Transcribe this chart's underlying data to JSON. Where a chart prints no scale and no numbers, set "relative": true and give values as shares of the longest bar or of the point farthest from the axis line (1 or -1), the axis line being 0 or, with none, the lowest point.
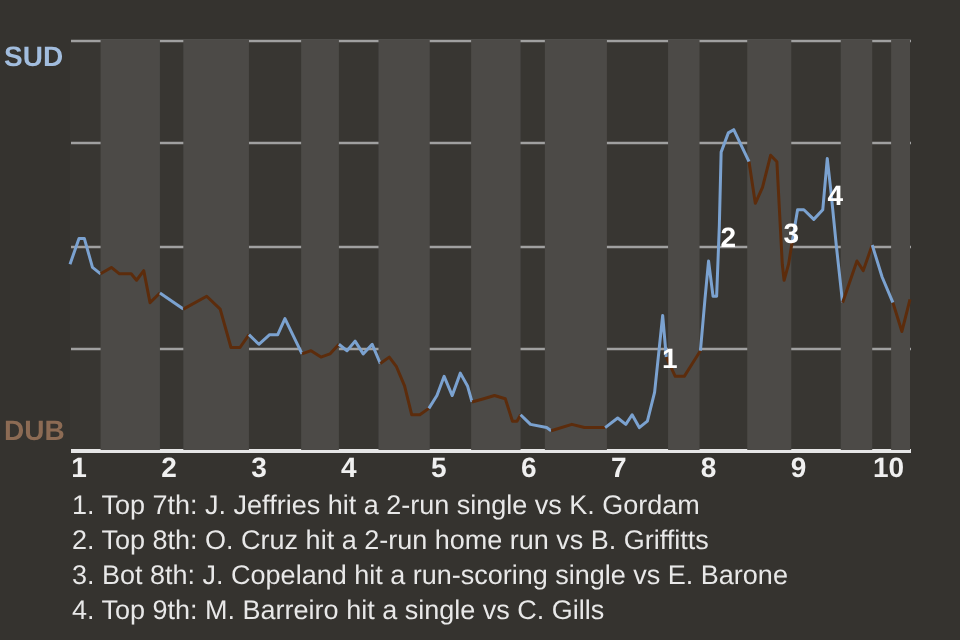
{
  "chart_data": {
    "type": "line",
    "relative": true,
    "xlim": [
      0.91,
      10.25
    ],
    "xticks": [
      1,
      2,
      3,
      4,
      5,
      6,
      7,
      8,
      9,
      10
    ],
    "grid": "y",
    "series": [
      {
        "color": "#7ba2d0",
        "x": [
          0.91,
          1.01,
          1.07,
          1.16,
          1.25
        ],
        "values": [
          0.58,
          0.66,
          0.66,
          0.57,
          0.55
        ]
      },
      {
        "color": "#5c2c0c",
        "x": [
          1.25,
          1.37,
          1.46,
          1.59,
          1.65,
          1.73,
          1.8,
          1.91
        ],
        "values": [
          0.55,
          0.57,
          0.55,
          0.55,
          0.53,
          0.56,
          0.46,
          0.49
        ]
      },
      {
        "color": "#7ba2d0",
        "x": [
          1.91,
          2.17
        ],
        "values": [
          0.49,
          0.44
        ]
      },
      {
        "color": "#5c2c0c",
        "x": [
          2.17,
          2.43,
          2.58,
          2.7,
          2.8,
          2.9
        ],
        "values": [
          0.44,
          0.48,
          0.44,
          0.32,
          0.32,
          0.36
        ]
      },
      {
        "color": "#7ba2d0",
        "x": [
          2.9,
          3.01,
          3.13,
          3.22,
          3.3,
          3.49
        ],
        "values": [
          0.36,
          0.33,
          0.36,
          0.36,
          0.41,
          0.3
        ]
      },
      {
        "color": "#5c2c0c",
        "x": [
          3.49,
          3.59,
          3.7,
          3.8,
          3.9
        ],
        "values": [
          0.3,
          0.31,
          0.29,
          0.3,
          0.33
        ]
      },
      {
        "color": "#7ba2d0",
        "x": [
          3.9,
          3.99,
          4.08,
          4.17,
          4.27,
          4.36
        ],
        "values": [
          0.33,
          0.31,
          0.34,
          0.3,
          0.33,
          0.27
        ]
      },
      {
        "color": "#5c2c0c",
        "x": [
          4.36,
          4.46,
          4.54,
          4.63,
          4.71,
          4.8,
          4.9
        ],
        "values": [
          0.27,
          0.29,
          0.26,
          0.2,
          0.11,
          0.11,
          0.13
        ]
      },
      {
        "color": "#7ba2d0",
        "x": [
          4.9,
          4.99,
          5.07,
          5.16,
          5.25,
          5.33,
          5.38
        ],
        "values": [
          0.13,
          0.17,
          0.23,
          0.17,
          0.24,
          0.2,
          0.15
        ]
      },
      {
        "color": "#5c2c0c",
        "x": [
          5.38,
          5.51,
          5.63,
          5.75,
          5.83,
          5.88,
          5.92
        ],
        "values": [
          0.15,
          0.16,
          0.17,
          0.16,
          0.09,
          0.09,
          0.11
        ]
      },
      {
        "color": "#7ba2d0",
        "x": [
          5.92,
          6.03,
          6.21,
          6.26
        ],
        "values": [
          0.11,
          0.08,
          0.07,
          0.06
        ]
      },
      {
        "color": "#5c2c0c",
        "x": [
          6.26,
          6.49,
          6.63,
          6.86
        ],
        "values": [
          0.06,
          0.08,
          0.07,
          0.07
        ]
      },
      {
        "color": "#7ba2d0",
        "x": [
          6.86,
          7.0,
          7.09,
          7.16,
          7.24,
          7.33,
          7.41,
          7.5,
          7.54
        ],
        "values": [
          0.07,
          0.1,
          0.08,
          0.11,
          0.07,
          0.09,
          0.18,
          0.42,
          0.29
        ]
      },
      {
        "color": "#5c2c0c",
        "x": [
          7.54,
          7.64,
          7.74,
          7.83,
          7.92
        ],
        "values": [
          0.29,
          0.23,
          0.23,
          0.27,
          0.31
        ]
      },
      {
        "color": "#7ba2d0",
        "x": [
          7.92,
          7.97,
          8.01,
          8.06,
          8.1,
          8.13,
          8.15,
          8.23,
          8.29,
          8.46
        ],
        "values": [
          0.31,
          0.47,
          0.59,
          0.48,
          0.48,
          0.7,
          0.93,
          0.99,
          1,
          0.9
        ]
      },
      {
        "color": "#5c2c0c",
        "x": [
          8.46,
          8.53,
          8.61,
          8.7,
          8.77,
          8.83,
          8.85,
          8.9,
          8.94
        ],
        "values": [
          0.9,
          0.77,
          0.82,
          0.92,
          0.9,
          0.58,
          0.53,
          0.58,
          0.65
        ]
      },
      {
        "color": "#7ba2d0",
        "x": [
          8.94,
          9.0,
          9.07,
          9.18,
          9.28,
          9.33,
          9.37,
          9.43,
          9.5
        ],
        "values": [
          0.65,
          0.75,
          0.75,
          0.72,
          0.75,
          0.91,
          0.81,
          0.64,
          0.46
        ]
      },
      {
        "color": "#5c2c0c",
        "x": [
          9.5,
          9.66,
          9.73,
          9.83
        ],
        "values": [
          0.46,
          0.59,
          0.56,
          0.64
        ]
      },
      {
        "color": "#7ba2d0",
        "x": [
          9.83,
          9.94,
          10.06
        ],
        "values": [
          0.64,
          0.54,
          0.46
        ]
      },
      {
        "color": "#5c2c0c",
        "x": [
          10.06,
          10.16,
          10.25
        ],
        "values": [
          0.46,
          0.37,
          0.47
        ]
      }
    ],
    "bands": [
      {
        "axis": "x",
        "from": 1.25,
        "to": 1.91,
        "color": "#4c4a47"
      },
      {
        "axis": "x",
        "from": 2.17,
        "to": 2.9,
        "color": "#4c4a47"
      },
      {
        "axis": "x",
        "from": 3.48,
        "to": 3.9,
        "color": "#4c4a47"
      },
      {
        "axis": "x",
        "from": 4.34,
        "to": 4.91,
        "color": "#4c4a47"
      },
      {
        "axis": "x",
        "from": 5.37,
        "to": 5.92,
        "color": "#4c4a47"
      },
      {
        "axis": "x",
        "from": 6.19,
        "to": 6.88,
        "color": "#4c4a47"
      },
      {
        "axis": "x",
        "from": 7.56,
        "to": 7.91,
        "color": "#4c4a47"
      },
      {
        "axis": "x",
        "from": 8.44,
        "to": 8.93,
        "color": "#4c4a47"
      },
      {
        "axis": "x",
        "from": 9.48,
        "to": 9.83,
        "color": "#4c4a47"
      },
      {
        "axis": "x",
        "from": 10.04,
        "to": 10.25,
        "color": "#4c4a47"
      }
    ],
    "annotations": [
      "SUD",
      "DUB",
      {
        "text": "1",
        "x": 7.58,
        "y": 0.28
      },
      {
        "text": "2",
        "x": 8.23,
        "y": 0.66
      },
      {
        "text": "3",
        "x": 8.93,
        "y": 0.67
      },
      {
        "text": "4",
        "x": 9.42,
        "y": 0.79
      },
      "1. Top 7th: J. Jeffries hit a 2-run single vs K. Gordam",
      "2. Top 8th: O. Cruz hit a 2-run home run vs B. Griffitts",
      "3. Bot 8th: J. Copeland hit a run-scoring single vs E. Barone",
      "4. Top 9th: M. Barreiro hit a single vs C. Gills"
    ]
  }
}
